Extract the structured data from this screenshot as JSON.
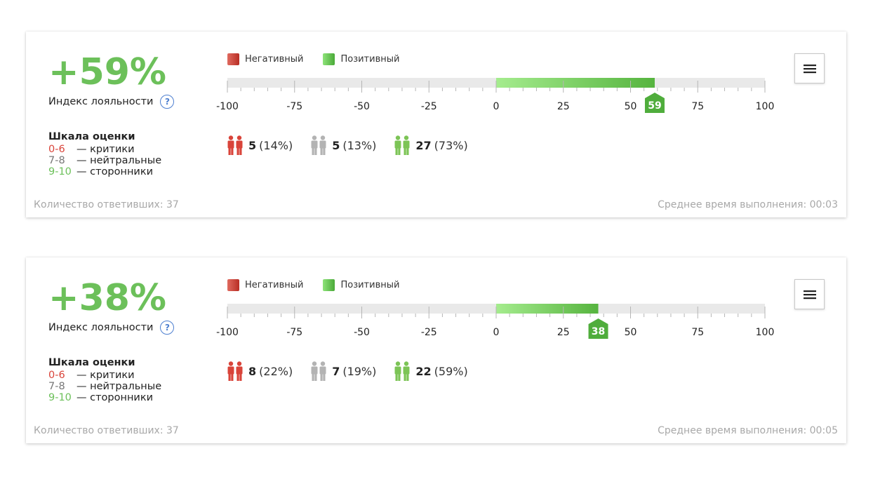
{
  "cards": [
    {
      "score": "+59%",
      "index_label": "Индекс лояльности",
      "help_glyph": "?",
      "legend": {
        "negative": "Негативный",
        "positive": "Позитивный"
      },
      "chart_data": {
        "type": "bar",
        "xlim": [
          -100,
          100
        ],
        "ticks": [
          "-100",
          "-75",
          "-50",
          "-25",
          "0",
          "25",
          "50",
          "75",
          "100"
        ],
        "value": 59,
        "marker_label": "59"
      },
      "scale": {
        "title": "Шкала оценки",
        "rows": [
          {
            "range": "0-6",
            "desc": "— критики"
          },
          {
            "range": "7-8",
            "desc": "— нейтральные"
          },
          {
            "range": "9-10",
            "desc": "— сторонники"
          }
        ]
      },
      "counts": [
        {
          "kind": "critics",
          "num": "5",
          "pct": "(14%)"
        },
        {
          "kind": "neutral",
          "num": "5",
          "pct": "(13%)"
        },
        {
          "kind": "promoters",
          "num": "27",
          "pct": "(73%)"
        }
      ],
      "footer_left": "Количество ответивших: 37",
      "footer_right": "Среднее время выполнения: 00:03"
    },
    {
      "score": "+38%",
      "index_label": "Индекс лояльности",
      "help_glyph": "?",
      "legend": {
        "negative": "Негативный",
        "positive": "Позитивный"
      },
      "chart_data": {
        "type": "bar",
        "xlim": [
          -100,
          100
        ],
        "ticks": [
          "-100",
          "-75",
          "-50",
          "-25",
          "0",
          "25",
          "50",
          "75",
          "100"
        ],
        "value": 38,
        "marker_label": "38"
      },
      "scale": {
        "title": "Шкала оценки",
        "rows": [
          {
            "range": "0-6",
            "desc": "— критики"
          },
          {
            "range": "7-8",
            "desc": "— нейтральные"
          },
          {
            "range": "9-10",
            "desc": "— сторонники"
          }
        ]
      },
      "counts": [
        {
          "kind": "critics",
          "num": "8",
          "pct": "(22%)"
        },
        {
          "kind": "neutral",
          "num": "7",
          "pct": "(19%)"
        },
        {
          "kind": "promoters",
          "num": "22",
          "pct": "(59%)"
        }
      ],
      "footer_left": "Количество ответивших: 37",
      "footer_right": "Среднее время выполнения: 00:05"
    }
  ],
  "colors": {
    "score_green": "#6cc05a",
    "critic_red": "#d9443a",
    "neutral_grey": "#b3b3b3",
    "promoter_green": "#7cc456",
    "track_grey": "#e9e9e9",
    "bar_start": "#a5ec8e",
    "bar_end": "#56b43f",
    "marker_green": "#4fad3c"
  },
  "icons": {
    "menu": "hamburger-icon",
    "help": "help-circle-icon",
    "person": "person-pair-icon"
  }
}
